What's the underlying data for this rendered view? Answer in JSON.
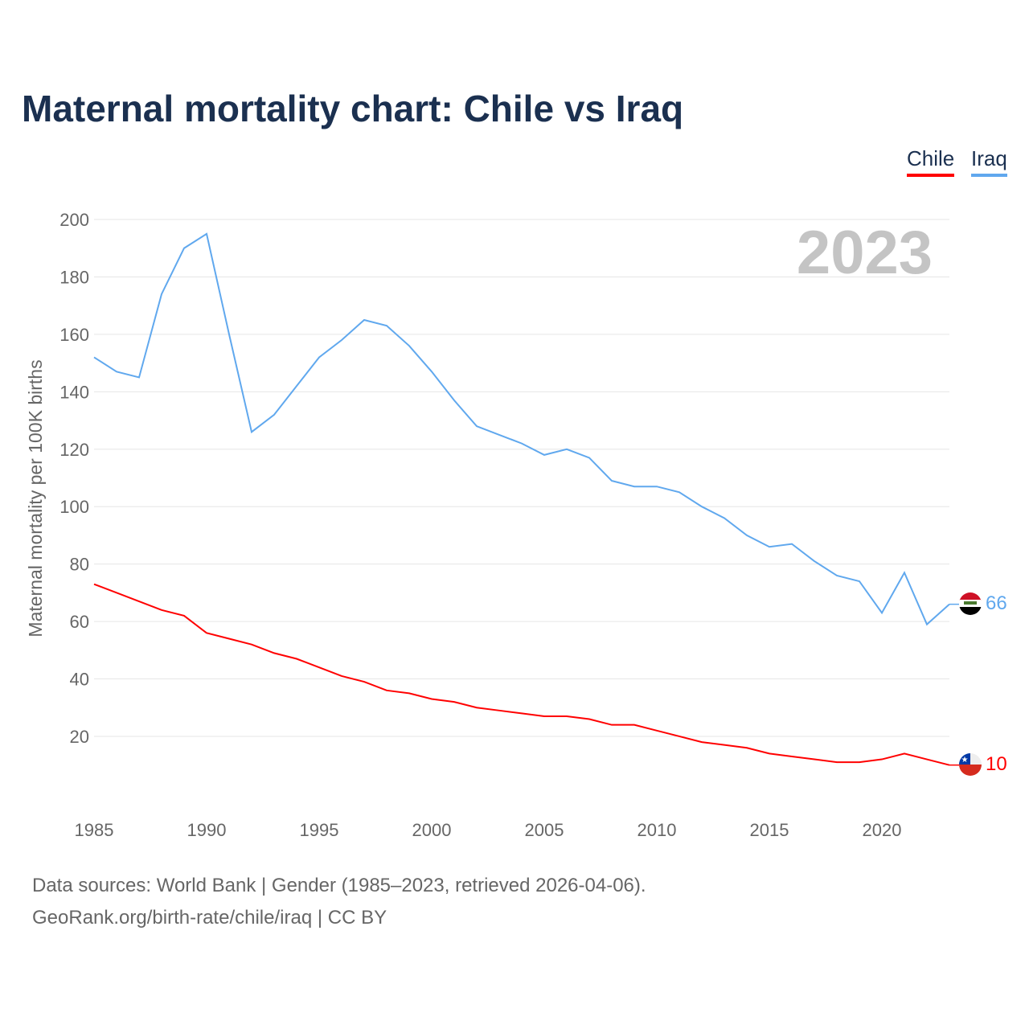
{
  "title": "Maternal mortality chart: Chile vs Iraq",
  "footer": {
    "line1": "Data sources: World Bank | Gender (1985–2023, retrieved 2026-04-06).",
    "line2": "GeoRank.org/birth-rate/chile/iraq | CC BY"
  },
  "chart_data": {
    "type": "line",
    "title": "Maternal mortality chart: Chile vs Iraq",
    "xlabel": "",
    "ylabel": "Maternal mortality per 100K births",
    "year_label": "2023",
    "xlim": [
      1985,
      2023
    ],
    "ylim": [
      0,
      200
    ],
    "xticks": [
      "1985",
      "1990",
      "1995",
      "2000",
      "2005",
      "2010",
      "2015",
      "2020"
    ],
    "yticks": [
      "20",
      "40",
      "60",
      "80",
      "100",
      "120",
      "140",
      "160",
      "180",
      "200"
    ],
    "grid": true,
    "legend_placement": "top-right",
    "x": [
      1985,
      1986,
      1987,
      1988,
      1989,
      1990,
      1991,
      1992,
      1993,
      1994,
      1995,
      1996,
      1997,
      1998,
      1999,
      2000,
      2001,
      2002,
      2003,
      2004,
      2005,
      2006,
      2007,
      2008,
      2009,
      2010,
      2011,
      2012,
      2013,
      2014,
      2015,
      2016,
      2017,
      2018,
      2019,
      2020,
      2021,
      2022,
      2023
    ],
    "series": [
      {
        "name": "Chile",
        "color": "#ff0000",
        "end_label": "10",
        "values": [
          73,
          70,
          67,
          64,
          62,
          56,
          54,
          52,
          49,
          47,
          44,
          41,
          39,
          36,
          35,
          33,
          32,
          30,
          29,
          28,
          27,
          27,
          26,
          24,
          24,
          22,
          20,
          18,
          17,
          16,
          14,
          13,
          12,
          11,
          11,
          12,
          14,
          12,
          10
        ]
      },
      {
        "name": "Iraq",
        "color": "#60a8ee",
        "end_label": "66",
        "values": [
          152,
          147,
          145,
          174,
          190,
          195,
          160,
          126,
          132,
          142,
          152,
          158,
          165,
          163,
          156,
          147,
          137,
          128,
          125,
          122,
          118,
          120,
          117,
          109,
          107,
          107,
          105,
          100,
          96,
          90,
          86,
          87,
          81,
          76,
          74,
          63,
          77,
          59,
          66
        ]
      }
    ]
  }
}
